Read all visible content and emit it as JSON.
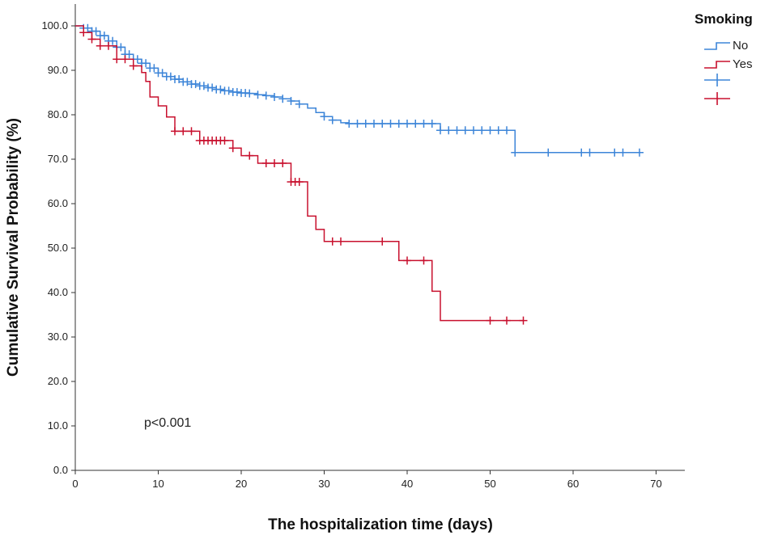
{
  "chart_data": {
    "type": "line",
    "subtype": "kaplan-meier",
    "title": "",
    "xlabel": "The hospitalization time (days)",
    "ylabel": "Cumulative Survival Probability (%)",
    "xlim": [
      0,
      70
    ],
    "ylim": [
      0,
      100
    ],
    "x_ticks": [
      0,
      10,
      20,
      30,
      40,
      50,
      60,
      70
    ],
    "y_ticks": [
      "0.0",
      "10.0",
      "20.0",
      "30.0",
      "40.0",
      "50.0",
      "60.0",
      "70.0",
      "80.0",
      "90.0",
      "100.0"
    ],
    "grid": false,
    "legend_title": "Smoking",
    "legend_position": "top-right",
    "annotation": "p<0.001",
    "series": [
      {
        "name": "No",
        "color": "#3d85d8",
        "steps": [
          [
            0,
            100
          ],
          [
            1,
            99.5
          ],
          [
            2,
            98.8
          ],
          [
            3,
            97.8
          ],
          [
            4,
            96.6
          ],
          [
            5,
            95.2
          ],
          [
            6,
            93.6
          ],
          [
            7,
            92.5
          ],
          [
            8,
            91.6
          ],
          [
            9,
            90.5
          ],
          [
            10,
            89.4
          ],
          [
            11,
            88.6
          ],
          [
            12,
            88.0
          ],
          [
            13,
            87.4
          ],
          [
            14,
            86.9
          ],
          [
            15,
            86.5
          ],
          [
            16,
            86.1
          ],
          [
            17,
            85.7
          ],
          [
            18,
            85.4
          ],
          [
            19,
            85.1
          ],
          [
            20,
            84.9
          ],
          [
            21,
            84.8
          ],
          [
            22,
            84.5
          ],
          [
            23,
            84.3
          ],
          [
            24,
            84.0
          ],
          [
            25,
            83.6
          ],
          [
            26,
            83.1
          ],
          [
            27,
            82.4
          ],
          [
            28,
            81.5
          ],
          [
            29,
            80.5
          ],
          [
            30,
            79.6
          ],
          [
            31,
            78.8
          ],
          [
            32,
            78.2
          ],
          [
            33,
            78.0
          ],
          [
            44,
            76.5
          ],
          [
            53,
            71.5
          ]
        ],
        "end_x": 68,
        "censor": [
          1,
          1.5,
          2,
          2.5,
          3,
          3.5,
          4,
          4.5,
          5,
          5.5,
          6,
          6.5,
          7,
          7.5,
          8,
          8.5,
          9,
          9.5,
          10,
          10.5,
          11,
          11.5,
          12,
          12.5,
          13,
          13.5,
          14,
          14.5,
          15,
          15.5,
          16,
          16.5,
          17,
          17.5,
          18,
          18.5,
          19,
          19.5,
          20,
          20.5,
          21,
          22,
          23,
          24,
          25,
          26,
          27,
          30,
          31,
          33,
          34,
          35,
          36,
          37,
          38,
          39,
          40,
          41,
          42,
          43,
          44,
          45,
          46,
          47,
          48,
          49,
          50,
          51,
          52,
          53,
          57,
          61,
          62,
          65,
          66,
          68
        ]
      },
      {
        "name": "Yes",
        "color": "#c8102e",
        "steps": [
          [
            0,
            100
          ],
          [
            1,
            98.5
          ],
          [
            2,
            97.0
          ],
          [
            3,
            95.5
          ],
          [
            5,
            92.5
          ],
          [
            7,
            91.0
          ],
          [
            8,
            89.5
          ],
          [
            8.5,
            87.5
          ],
          [
            9,
            84.0
          ],
          [
            10,
            82.0
          ],
          [
            11,
            79.5
          ],
          [
            12,
            76.3
          ],
          [
            15,
            74.2
          ],
          [
            19,
            72.5
          ],
          [
            20,
            70.8
          ],
          [
            22,
            69.1
          ],
          [
            26,
            64.9
          ],
          [
            28,
            57.2
          ],
          [
            29,
            54.2
          ],
          [
            30,
            51.5
          ],
          [
            39,
            47.2
          ],
          [
            43,
            40.3
          ],
          [
            44,
            33.7
          ]
        ],
        "end_x": 54,
        "censor": [
          1,
          2,
          3,
          4,
          5,
          6,
          7,
          12,
          13,
          14,
          15,
          15.5,
          16,
          16.5,
          17,
          17.5,
          18,
          19,
          21,
          23,
          24,
          25,
          26,
          26.5,
          27,
          31,
          32,
          37,
          40,
          42,
          50,
          52,
          54
        ]
      }
    ]
  }
}
